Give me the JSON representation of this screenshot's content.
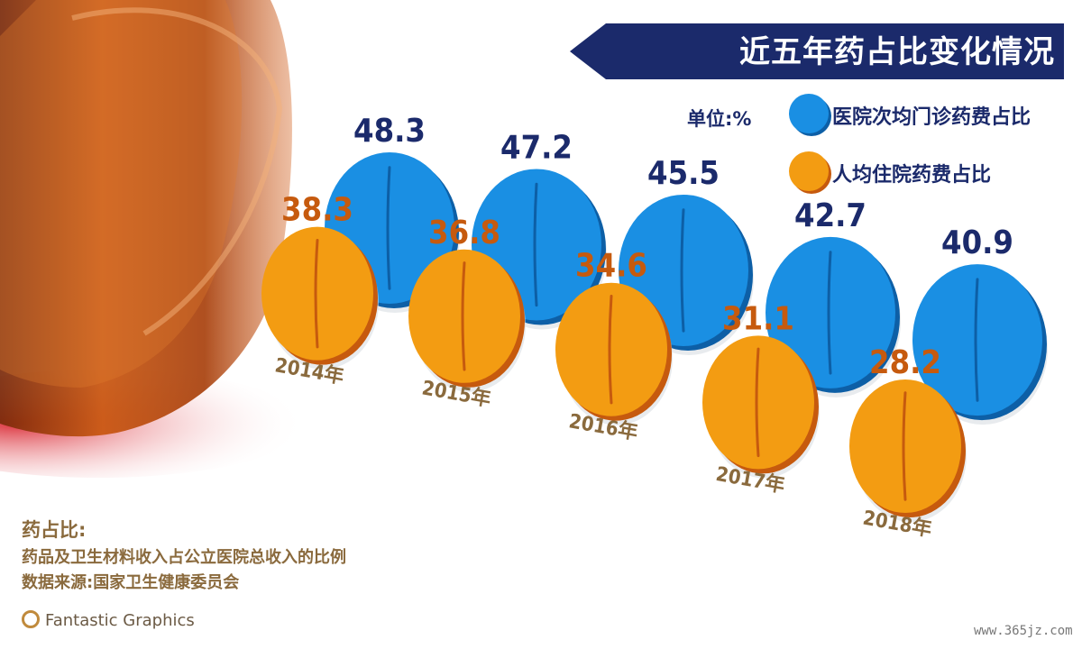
{
  "header": {
    "title": "近五年药占比变化情况"
  },
  "legend": {
    "unit": "单位:%",
    "items": [
      {
        "label": "医院次均门诊药费占比",
        "color": "#1a8fe3"
      },
      {
        "label": "人均住院药费占比",
        "color": "#f0950c"
      }
    ]
  },
  "notes": {
    "heading": "药占比:",
    "definition": "药品及卫生材料收入占公立医院总收入的比例",
    "source": "数据来源:国家卫生健康委员会"
  },
  "branding": {
    "name": "Fantastic Graphics",
    "watermark": "www.365jz.com"
  },
  "colors": {
    "blue_face": "#1a8fe3",
    "blue_edge": "#0d5fa6",
    "orange_face": "#f39c12",
    "orange_edge": "#c65a0e",
    "title_bg": "#1b2a6b",
    "blue_label": "#1b2a6b",
    "orange_label": "#c65a0e",
    "year_label": "#8a6a3d"
  },
  "chart_data": {
    "type": "bar",
    "title": "近五年药占比变化情况",
    "unit": "%",
    "categories": [
      "2014年",
      "2015年",
      "2016年",
      "2017年",
      "2018年"
    ],
    "series": [
      {
        "name": "医院次均门诊药费占比",
        "values": [
          48.3,
          47.2,
          45.5,
          42.7,
          40.9
        ]
      },
      {
        "name": "人均住院药费占比",
        "values": [
          38.3,
          36.8,
          34.6,
          31.1,
          28.2
        ]
      }
    ]
  }
}
